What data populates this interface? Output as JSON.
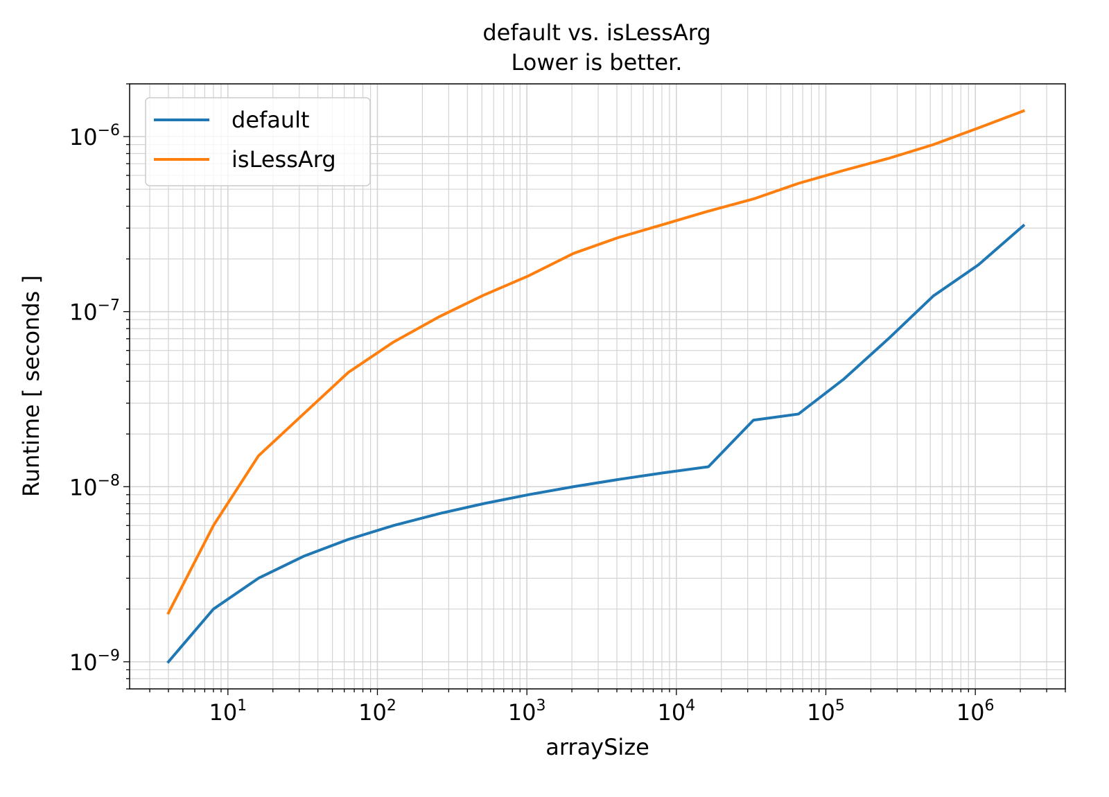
{
  "chart_data": {
    "type": "line",
    "title": "default vs. isLessArg",
    "subtitle": "Lower is better.",
    "xlabel": "arraySize",
    "ylabel": "Runtime [ seconds ]",
    "xscale": "log",
    "yscale": "log",
    "xlim": [
      2.2,
      4000000
    ],
    "ylim": [
      7e-10,
      2e-06
    ],
    "grid": "major and minor",
    "legend_position": "upper-left",
    "x_ticks": [
      {
        "value": 10,
        "label_base": "10",
        "label_exp": "1"
      },
      {
        "value": 100,
        "label_base": "10",
        "label_exp": "2"
      },
      {
        "value": 1000,
        "label_base": "10",
        "label_exp": "3"
      },
      {
        "value": 10000,
        "label_base": "10",
        "label_exp": "4"
      },
      {
        "value": 100000,
        "label_base": "10",
        "label_exp": "5"
      },
      {
        "value": 1000000,
        "label_base": "10",
        "label_exp": "6"
      }
    ],
    "y_ticks": [
      {
        "value": 1e-09,
        "label_base": "10",
        "label_exp": "−9"
      },
      {
        "value": 1e-08,
        "label_base": "10",
        "label_exp": "−8"
      },
      {
        "value": 1e-07,
        "label_base": "10",
        "label_exp": "−7"
      },
      {
        "value": 1e-06,
        "label_base": "10",
        "label_exp": "−6"
      }
    ],
    "x": [
      4,
      8,
      16,
      32,
      64,
      128,
      256,
      512,
      1024,
      2048,
      4096,
      8192,
      16384,
      32768,
      65536,
      131072,
      262144,
      524288,
      1048576,
      2097152
    ],
    "series": [
      {
        "name": "default",
        "color": "#1f77b4",
        "values": [
          1e-09,
          2e-09,
          3e-09,
          4e-09,
          5e-09,
          6e-09,
          7e-09,
          8e-09,
          9e-09,
          1e-08,
          1.1e-08,
          1.2e-08,
          1.3e-08,
          2.4e-08,
          2.6e-08,
          4.1e-08,
          7e-08,
          1.23e-07,
          1.85e-07,
          3.1e-07
        ]
      },
      {
        "name": "isLessArg",
        "color": "#ff7f0e",
        "values": [
          1.9e-09,
          6e-09,
          1.5e-08,
          2.6e-08,
          4.5e-08,
          6.7e-08,
          9.3e-08,
          1.24e-07,
          1.6e-07,
          2.15e-07,
          2.65e-07,
          3.15e-07,
          3.75e-07,
          4.4e-07,
          5.4e-07,
          6.4e-07,
          7.5e-07,
          9e-07,
          1.12e-06,
          1.4e-06
        ]
      }
    ]
  }
}
